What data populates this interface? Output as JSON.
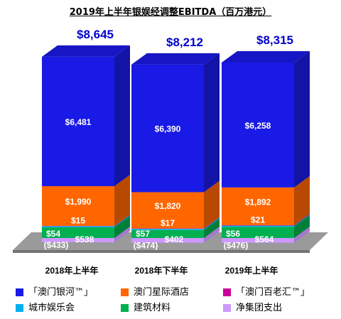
{
  "chart_data": {
    "type": "bar",
    "stacked": true,
    "title": "2019年上半年银娱经调整EBITDA（百万港元）",
    "categories": [
      "2018年上半年",
      "2018年下半年",
      "2019年上半年"
    ],
    "totals": [
      "$8,645",
      "$8,212",
      "$8,315"
    ],
    "total_values": [
      8645,
      8212,
      8315
    ],
    "series": [
      {
        "name": "净集团支出",
        "values": [
          -433,
          -474,
          -476
        ],
        "labels": [
          "($433)",
          "($474)",
          "($476)"
        ],
        "color": "#cc99ff"
      },
      {
        "name": "建筑材料",
        "values": [
          538,
          402,
          564
        ],
        "labels": [
          "$538",
          "$402",
          "$564"
        ],
        "color": "#00b050"
      },
      {
        "name": "城市娱乐会",
        "values": [
          54,
          57,
          56
        ],
        "labels": [
          "$54",
          "$57",
          "$56"
        ],
        "color": "#00b0f0"
      },
      {
        "name": "「澳门百老汇™」",
        "values": [
          15,
          17,
          21
        ],
        "labels": [
          "$15",
          "$17",
          "$21"
        ],
        "color": "#cc0099"
      },
      {
        "name": "澳门星际酒店",
        "values": [
          1990,
          1820,
          1892
        ],
        "labels": [
          "$1,990",
          "$1,820",
          "$1,892"
        ],
        "color": "#ff6600"
      },
      {
        "name": "「澳门银河™」",
        "values": [
          6481,
          6390,
          6258
        ],
        "labels": [
          "$6,481",
          "$6,390",
          "$6,258"
        ],
        "color": "#1a1ae6"
      }
    ],
    "legend_order": [
      "「澳门银河™」",
      "澳门星际酒店",
      "「澳门百老汇™」",
      "城市娱乐会",
      "建筑材料",
      "净集团支出"
    ],
    "legend_position": "bottom",
    "grid": false
  },
  "colors": {
    "total_label": "#0000cc",
    "floor": "#9a9a9a",
    "value_label": "#ffffff"
  }
}
